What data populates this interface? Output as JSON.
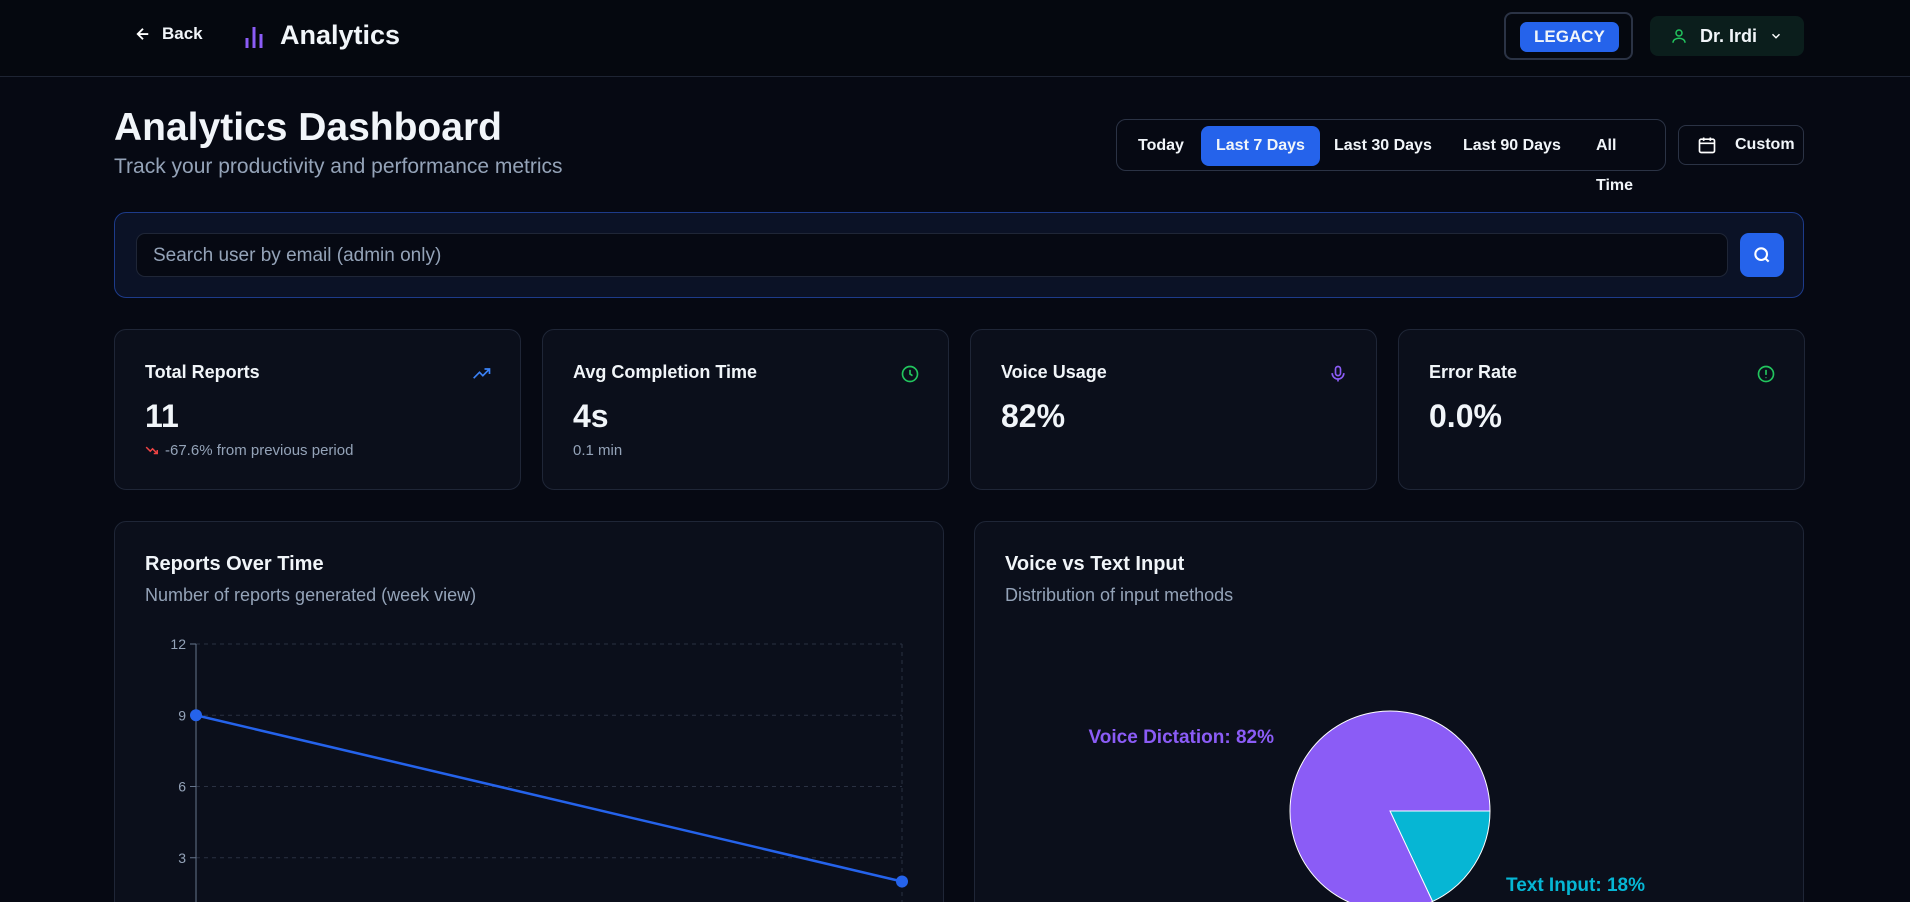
{
  "nav": {
    "back": "Back",
    "title": "Analytics",
    "badge": "LEGACY",
    "user": "Dr. Irdi"
  },
  "header": {
    "title": "Analytics Dashboard",
    "subtitle": "Track your productivity and performance metrics"
  },
  "ranges": {
    "options": [
      "Today",
      "Last 7 Days",
      "Last 30 Days",
      "Last 90 Days",
      "All Time"
    ],
    "active": 1,
    "custom": "Custom"
  },
  "search": {
    "placeholder": "Search user by email (admin only)"
  },
  "stats": [
    {
      "label": "Total Reports",
      "value": "11",
      "sub": "-67.6% from previous period"
    },
    {
      "label": "Avg Completion Time",
      "value": "4s",
      "sub": "0.1 min"
    },
    {
      "label": "Voice Usage",
      "value": "82%"
    },
    {
      "label": "Error Rate",
      "value": "0.0%"
    }
  ],
  "chart_data": [
    {
      "type": "line",
      "title": "Reports Over Time",
      "subtitle": "Number of reports generated (week view)",
      "categories": [
        null,
        null
      ],
      "series": [
        {
          "color": "#2563eb",
          "values": [
            9,
            2
          ]
        }
      ],
      "ylim": [
        0,
        12
      ],
      "yticks": [
        3,
        6,
        9,
        12
      ],
      "grid": true
    },
    {
      "type": "pie",
      "title": "Voice vs Text Input",
      "subtitle": "Distribution of input methods",
      "values": [
        82,
        18
      ],
      "value_labels": [
        "Voice Dictation: 82%",
        "Text Input: 18%"
      ],
      "colors": [
        "#8b5cf6",
        "#06b6d4"
      ]
    }
  ]
}
